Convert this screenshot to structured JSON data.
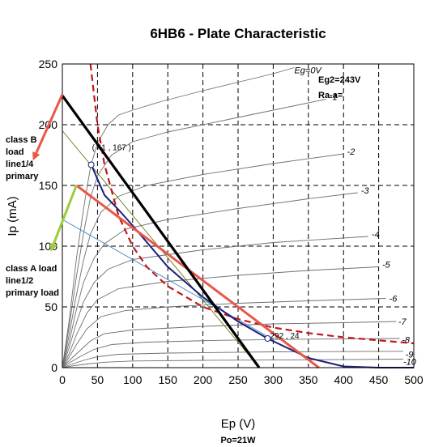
{
  "chart_data": {
    "type": "line",
    "title": "6HB6 - Plate Characteristic",
    "xlabel": "Ep (V)",
    "ylabel": "Ip (mA)",
    "xlim": [
      0,
      500
    ],
    "ylim": [
      0,
      250
    ],
    "xticks": [
      0,
      50,
      100,
      150,
      200,
      250,
      300,
      350,
      400,
      450,
      500
    ],
    "yticks": [
      0,
      50,
      100,
      150,
      200,
      250
    ],
    "grid": "dashed",
    "eg2_label": "Eg2=243V",
    "raa_label": "Ra-a=",
    "po_label": "Po=21W",
    "curves": [
      {
        "label": "Eg=0V",
        "x": [
          0,
          10,
          20,
          30,
          40,
          50,
          65,
          80,
          100,
          140,
          200,
          300,
          330
        ],
        "y": [
          0,
          40,
          90,
          130,
          165,
          185,
          200,
          208,
          212,
          219,
          228,
          242,
          247
        ],
        "label_pos": [
          330,
          245
        ]
      },
      {
        "label": "-1",
        "x": [
          0,
          10,
          20,
          30,
          40,
          50,
          70,
          100,
          150,
          250,
          350,
          375
        ],
        "y": [
          0,
          35,
          75,
          110,
          140,
          158,
          175,
          186,
          194,
          206,
          218,
          221
        ],
        "label_pos": [
          380,
          223
        ]
      },
      {
        "label": "-2",
        "x": [
          0,
          10,
          20,
          30,
          40,
          55,
          80,
          120,
          200,
          300,
          400
        ],
        "y": [
          0,
          28,
          60,
          88,
          110,
          128,
          141,
          150,
          159,
          168,
          176
        ],
        "label_pos": [
          405,
          178
        ]
      },
      {
        "label": "-3",
        "x": [
          0,
          10,
          20,
          30,
          45,
          60,
          90,
          150,
          250,
          350,
          420
        ],
        "y": [
          0,
          22,
          48,
          70,
          90,
          102,
          114,
          122,
          131,
          139,
          144
        ],
        "label_pos": [
          425,
          146
        ]
      },
      {
        "label": "-4",
        "x": [
          0,
          10,
          20,
          30,
          45,
          65,
          100,
          200,
          300,
          435
        ],
        "y": [
          0,
          17,
          37,
          54,
          70,
          81,
          89,
          97,
          103,
          108
        ],
        "label_pos": [
          440,
          110
        ]
      },
      {
        "label": "-5",
        "x": [
          0,
          10,
          20,
          35,
          50,
          80,
          150,
          250,
          350,
          450
        ],
        "y": [
          0,
          12,
          27,
          45,
          56,
          65,
          71,
          76,
          80,
          83
        ],
        "label_pos": [
          455,
          85
        ]
      },
      {
        "label": "-6",
        "x": [
          0,
          10,
          20,
          35,
          55,
          90,
          150,
          250,
          350,
          460
        ],
        "y": [
          0,
          9,
          19,
          32,
          42,
          47,
          50,
          53,
          55,
          57
        ],
        "label_pos": [
          465,
          57
        ]
      },
      {
        "label": "-7",
        "x": [
          0,
          10,
          25,
          40,
          60,
          100,
          200,
          300,
          400,
          475
        ],
        "y": [
          0,
          6,
          14,
          22,
          28,
          31,
          34,
          36,
          37,
          38
        ],
        "label_pos": [
          478,
          38
        ]
      },
      {
        "label": "-8",
        "x": [
          0,
          10,
          25,
          45,
          70,
          120,
          220,
          350,
          480
        ],
        "y": [
          0,
          4,
          9,
          15,
          19,
          21,
          22.5,
          23.5,
          24
        ],
        "label_pos": [
          483,
          23
        ]
      },
      {
        "label": "-9",
        "x": [
          0,
          15,
          30,
          50,
          80,
          150,
          300,
          485
        ],
        "y": [
          0,
          3,
          6,
          9,
          11,
          12,
          13,
          13.5
        ],
        "label_pos": [
          488,
          11
        ]
      },
      {
        "label": "-10",
        "x": [
          0,
          15,
          35,
          60,
          100,
          200,
          350,
          485
        ],
        "y": [
          0,
          1.5,
          3,
          4.5,
          5.5,
          6,
          6.5,
          7
        ],
        "label_pos": [
          485,
          5
        ]
      }
    ],
    "load_lines": [
      {
        "name": "black",
        "x": [
          0,
          280
        ],
        "y": [
          224,
          0
        ]
      },
      {
        "name": "red",
        "x": [
          20,
          365
        ],
        "y": [
          150,
          0
        ]
      },
      {
        "name": "olive",
        "x": [
          0,
          280
        ],
        "y": [
          195,
          0
        ]
      },
      {
        "name": "steelblue",
        "x": [
          0,
          300
        ],
        "y": [
          122,
          23
        ]
      }
    ],
    "dissipation_curve": {
      "x": [
        40,
        50,
        60,
        80,
        100,
        120,
        150,
        200,
        250,
        300,
        350,
        400,
        500
      ],
      "y": [
        250,
        200,
        167,
        125,
        100,
        83,
        67,
        50,
        40,
        33,
        28.5,
        25,
        20
      ]
    },
    "operating_curve": {
      "x": [
        41,
        60,
        80,
        100,
        150,
        200,
        250,
        292,
        350,
        400,
        450,
        500
      ],
      "y": [
        167,
        142,
        130,
        117,
        83,
        58,
        38,
        24,
        8,
        1,
        0,
        0
      ]
    },
    "points": [
      {
        "label": "( 41 , 167 )",
        "x": 41,
        "y": 167
      },
      {
        "label": "292 , 24",
        "x": 292,
        "y": 24
      }
    ],
    "annotations": [
      {
        "lines": [
          "class B",
          "load",
          "line1/4",
          "primary"
        ],
        "arrow_from": [
          0,
          225
        ],
        "arrow_to": [
          -40,
          173
        ]
      },
      {
        "lines": [
          "class A load",
          "line1/2",
          "primary load"
        ],
        "arrow_from": [
          20,
          150
        ],
        "arrow_to": [
          -15,
          98
        ]
      }
    ]
  }
}
